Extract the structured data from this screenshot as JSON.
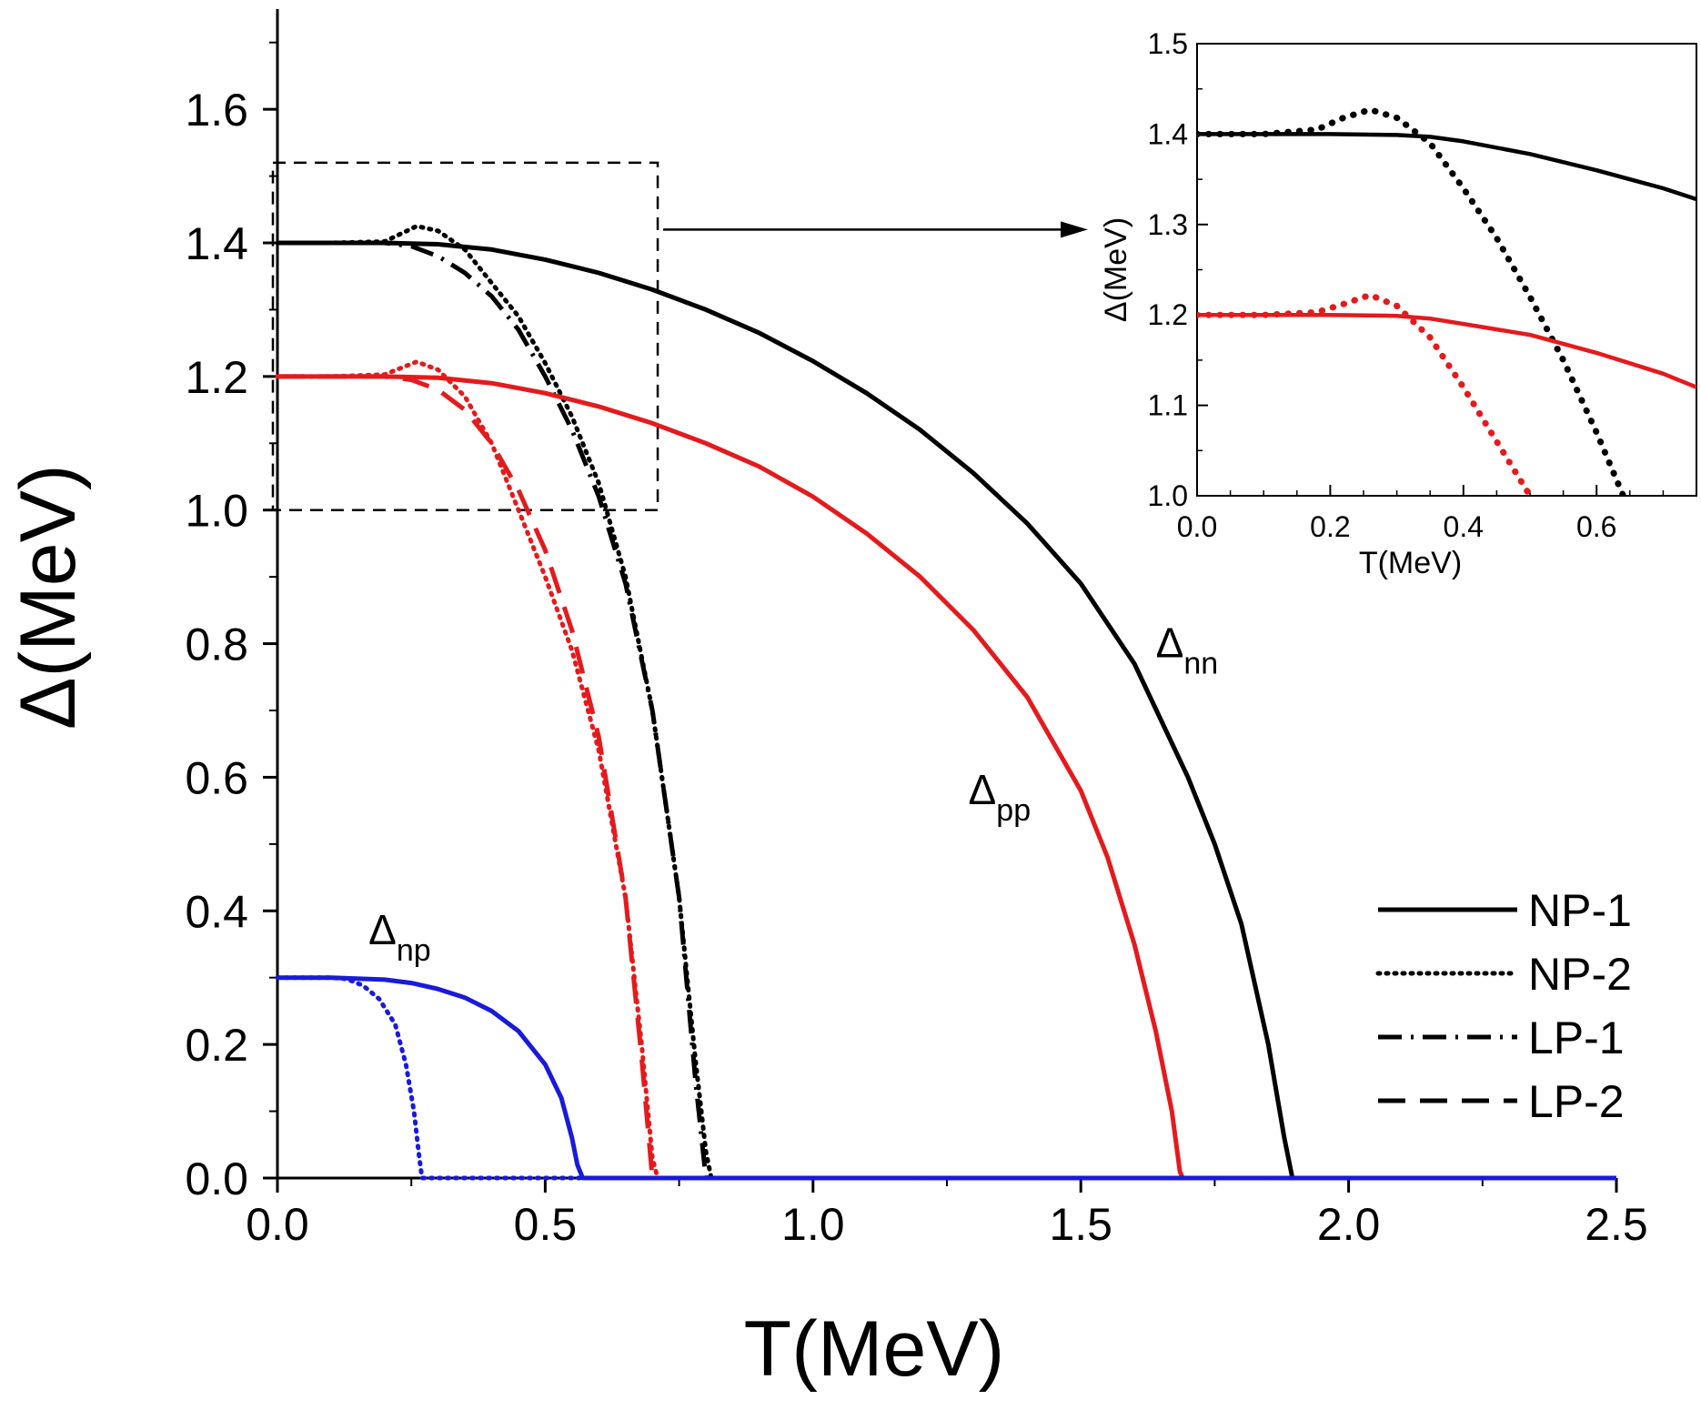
{
  "chart_data": [
    {
      "type": "line",
      "xlabel": "T(MeV)",
      "ylabel": "Δ(MeV)",
      "xlim": [
        0,
        2.5
      ],
      "ylim": [
        0,
        1.75
      ],
      "xticks": [
        "0.0",
        "0.5",
        "1.0",
        "1.5",
        "2.0",
        "2.5"
      ],
      "yticks": [
        "0.0",
        "0.2",
        "0.4",
        "0.6",
        "0.8",
        "1.0",
        "1.2",
        "1.4",
        "1.6"
      ],
      "grid": false,
      "legend_position": "bottom-right",
      "legend": [
        {
          "name": "NP-1",
          "dash": "solid"
        },
        {
          "name": "NP-2",
          "dash": "dotted"
        },
        {
          "name": "LP-1",
          "dash": "dashdot"
        },
        {
          "name": "LP-2",
          "dash": "dashed"
        }
      ],
      "annotations": [
        {
          "base": "Δ",
          "sub": "nn",
          "x": 1.64,
          "y": 0.78
        },
        {
          "base": "Δ",
          "sub": "pp",
          "x": 1.29,
          "y": 0.56
        },
        {
          "base": "Δ",
          "sub": "np",
          "x": 0.17,
          "y": 0.35
        }
      ],
      "inset_marker": {
        "x_range": [
          0,
          0.71
        ],
        "y_range": [
          1.0,
          1.52
        ]
      },
      "series": [
        {
          "channel": "nn",
          "model": "NP-1",
          "color": "#000000",
          "dash": "solid",
          "x": [
            0,
            0.1,
            0.2,
            0.3,
            0.4,
            0.5,
            0.6,
            0.7,
            0.8,
            0.9,
            1.0,
            1.1,
            1.2,
            1.3,
            1.4,
            1.5,
            1.6,
            1.7,
            1.75,
            1.8,
            1.85,
            1.88,
            1.895,
            1.9,
            2.5
          ],
          "y": [
            1.4,
            1.4,
            1.4,
            1.398,
            1.39,
            1.375,
            1.355,
            1.33,
            1.3,
            1.265,
            1.223,
            1.175,
            1.12,
            1.055,
            0.98,
            0.89,
            0.77,
            0.6,
            0.5,
            0.38,
            0.2,
            0.06,
            0,
            0,
            0
          ]
        },
        {
          "channel": "nn",
          "model": "NP-2",
          "color": "#000000",
          "dash": "dotted",
          "x": [
            0,
            0.1,
            0.2,
            0.26,
            0.3,
            0.35,
            0.4,
            0.45,
            0.5,
            0.55,
            0.6,
            0.65,
            0.7,
            0.75,
            0.78,
            0.8,
            0.81,
            2.5
          ],
          "y": [
            1.4,
            1.4,
            1.402,
            1.425,
            1.418,
            1.39,
            1.34,
            1.29,
            1.22,
            1.14,
            1.04,
            0.9,
            0.7,
            0.42,
            0.18,
            0.04,
            0,
            0
          ]
        },
        {
          "channel": "nn",
          "model": "LP-1",
          "color": "#000000",
          "dash": "dashdot",
          "x": [
            0,
            0.1,
            0.2,
            0.25,
            0.3,
            0.35,
            0.4,
            0.45,
            0.5,
            0.55,
            0.6,
            0.65,
            0.7,
            0.75,
            0.78,
            0.8,
            2.5
          ],
          "y": [
            1.4,
            1.4,
            1.4,
            1.395,
            1.38,
            1.355,
            1.32,
            1.27,
            1.2,
            1.12,
            1.02,
            0.89,
            0.7,
            0.42,
            0.15,
            0,
            0
          ]
        },
        {
          "channel": "pp",
          "model": "NP-1",
          "color": "#e41a1c",
          "dash": "solid",
          "x": [
            0,
            0.1,
            0.2,
            0.3,
            0.4,
            0.5,
            0.6,
            0.7,
            0.8,
            0.9,
            1.0,
            1.1,
            1.2,
            1.3,
            1.4,
            1.5,
            1.55,
            1.6,
            1.64,
            1.67,
            1.685,
            1.69,
            2.5
          ],
          "y": [
            1.2,
            1.2,
            1.2,
            1.198,
            1.19,
            1.175,
            1.155,
            1.13,
            1.1,
            1.065,
            1.02,
            0.965,
            0.9,
            0.82,
            0.72,
            0.58,
            0.48,
            0.35,
            0.22,
            0.1,
            0.01,
            0,
            0
          ]
        },
        {
          "channel": "pp",
          "model": "NP-2",
          "color": "#e41a1c",
          "dash": "dotted",
          "x": [
            0,
            0.1,
            0.2,
            0.26,
            0.3,
            0.35,
            0.4,
            0.45,
            0.5,
            0.55,
            0.6,
            0.65,
            0.68,
            0.7,
            0.71,
            2.5
          ],
          "y": [
            1.2,
            1.2,
            1.203,
            1.222,
            1.21,
            1.17,
            1.1,
            1.0,
            0.9,
            0.79,
            0.64,
            0.42,
            0.2,
            0.03,
            0,
            0
          ]
        },
        {
          "channel": "pp",
          "model": "LP-2",
          "color": "#e41a1c",
          "dash": "dashed",
          "x": [
            0,
            0.1,
            0.2,
            0.25,
            0.3,
            0.35,
            0.4,
            0.45,
            0.5,
            0.55,
            0.6,
            0.65,
            0.68,
            0.7,
            2.5
          ],
          "y": [
            1.2,
            1.2,
            1.2,
            1.195,
            1.18,
            1.15,
            1.1,
            1.03,
            0.94,
            0.82,
            0.66,
            0.42,
            0.18,
            0,
            0
          ]
        },
        {
          "channel": "np",
          "model": "NP-1",
          "color": "#1a1adb",
          "dash": "solid",
          "x": [
            0,
            0.1,
            0.2,
            0.25,
            0.3,
            0.35,
            0.4,
            0.45,
            0.5,
            0.53,
            0.55,
            0.56,
            0.57,
            2.5
          ],
          "y": [
            0.3,
            0.3,
            0.297,
            0.292,
            0.283,
            0.27,
            0.25,
            0.22,
            0.17,
            0.12,
            0.06,
            0.02,
            0,
            0
          ]
        },
        {
          "channel": "np",
          "model": "NP-2",
          "color": "#1a1adb",
          "dash": "dotted",
          "x": [
            0,
            0.1,
            0.13,
            0.16,
            0.19,
            0.22,
            0.24,
            0.255,
            0.265,
            0.27,
            2.5
          ],
          "y": [
            0.3,
            0.3,
            0.298,
            0.288,
            0.268,
            0.23,
            0.17,
            0.1,
            0.03,
            0,
            0
          ]
        }
      ]
    },
    {
      "type": "line",
      "inset": true,
      "xlabel": "T(MeV)",
      "ylabel": "Δ(MeV)",
      "xlim": [
        0,
        0.75
      ],
      "ylim": [
        1.0,
        1.5
      ],
      "xticks": [
        "0.0",
        "0.2",
        "0.4",
        "0.6"
      ],
      "yticks": [
        "1.0",
        "1.1",
        "1.2",
        "1.3",
        "1.4",
        "1.5"
      ],
      "grid": false,
      "series": [
        {
          "channel": "nn",
          "model": "NP-1",
          "color": "#000000",
          "dash": "solid",
          "x": [
            0,
            0.1,
            0.2,
            0.3,
            0.35,
            0.4,
            0.5,
            0.6,
            0.7,
            0.75
          ],
          "y": [
            1.4,
            1.4,
            1.4,
            1.399,
            1.397,
            1.392,
            1.378,
            1.36,
            1.34,
            1.328
          ]
        },
        {
          "channel": "nn",
          "model": "NP-2",
          "color": "#000000",
          "dash": "dotted",
          "x": [
            0,
            0.1,
            0.18,
            0.22,
            0.26,
            0.3,
            0.35,
            0.4,
            0.45,
            0.5,
            0.55,
            0.6,
            0.64
          ],
          "y": [
            1.4,
            1.4,
            1.405,
            1.418,
            1.427,
            1.418,
            1.39,
            1.34,
            1.285,
            1.22,
            1.15,
            1.07,
            1.0
          ]
        },
        {
          "channel": "pp",
          "model": "NP-1",
          "color": "#e41a1c",
          "dash": "solid",
          "x": [
            0,
            0.1,
            0.2,
            0.3,
            0.35,
            0.4,
            0.5,
            0.6,
            0.7,
            0.75
          ],
          "y": [
            1.2,
            1.2,
            1.2,
            1.199,
            1.196,
            1.19,
            1.178,
            1.158,
            1.135,
            1.12
          ]
        },
        {
          "channel": "pp",
          "model": "NP-2",
          "color": "#e41a1c",
          "dash": "dotted",
          "x": [
            0,
            0.1,
            0.18,
            0.22,
            0.26,
            0.3,
            0.35,
            0.4,
            0.45,
            0.5
          ],
          "y": [
            1.2,
            1.2,
            1.203,
            1.212,
            1.222,
            1.21,
            1.175,
            1.12,
            1.06,
            1.0
          ]
        }
      ]
    }
  ]
}
